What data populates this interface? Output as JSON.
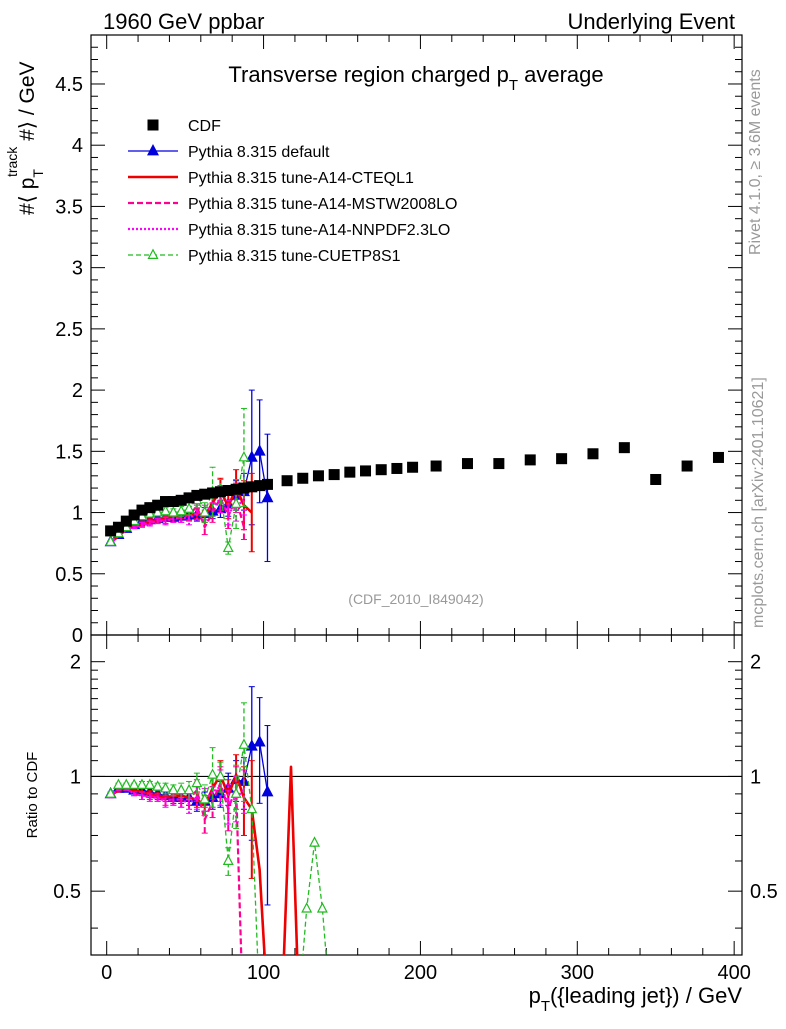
{
  "header": {
    "left": "1960 GeV ppbar",
    "right": "Underlying Event",
    "side_top": "Rivet 4.1.0, ≥ 3.6M events",
    "side_bottom": "mcplots.cern.ch [arXiv:2401.10621]"
  },
  "chart_data": [
    {
      "type": "line",
      "panel": "main",
      "title": "Transverse region charged p_T average",
      "title_main": "Transverse region charged p",
      "title_sub": "T",
      "title_tail": " average",
      "ylabel": "#⟨ p_T^track #⟩ / GeV",
      "ylabel_pre": "#⟨ p",
      "ylabel_sub": "T",
      "ylabel_sup": "track",
      "ylabel_post": " #⟩ / GeV",
      "watermark": "(CDF_2010_I849042)",
      "xlim": [
        -10,
        405
      ],
      "ylim": [
        0,
        4.9
      ],
      "yticks": [
        0,
        0.5,
        1,
        1.5,
        2,
        2.5,
        3,
        3.5,
        4,
        4.5
      ],
      "ytick_labels": [
        "0",
        "0.5",
        "1",
        "1.5",
        "2",
        "2.5",
        "3",
        "3.5",
        "4",
        "4.5"
      ],
      "legend_position": "top-left",
      "series": [
        {
          "name": "CDF",
          "style": "data",
          "color": "#000000",
          "x": [
            2.5,
            7.5,
            12.5,
            17.5,
            22.5,
            27.5,
            32.5,
            37.5,
            42.5,
            47.5,
            52.5,
            57.5,
            62.5,
            67.5,
            72.5,
            77.5,
            82.5,
            87.5,
            92.5,
            97.5,
            102.5,
            115,
            125,
            135,
            145,
            155,
            165,
            175,
            185,
            195,
            210,
            230,
            250,
            270,
            290,
            310,
            330,
            350,
            370,
            390
          ],
          "y": [
            0.85,
            0.88,
            0.93,
            0.98,
            1.02,
            1.04,
            1.06,
            1.09,
            1.09,
            1.1,
            1.12,
            1.14,
            1.15,
            1.16,
            1.17,
            1.18,
            1.19,
            1.2,
            1.21,
            1.22,
            1.23,
            1.26,
            1.28,
            1.3,
            1.31,
            1.33,
            1.34,
            1.35,
            1.36,
            1.37,
            1.38,
            1.4,
            1.4,
            1.43,
            1.44,
            1.48,
            1.53,
            1.27,
            1.38,
            1.45
          ]
        },
        {
          "name": "Pythia 8.315 default",
          "style": "blue-triangle",
          "color": "#0000dd",
          "x": [
            2.5,
            7.5,
            12.5,
            17.5,
            22.5,
            27.5,
            32.5,
            37.5,
            42.5,
            47.5,
            52.5,
            57.5,
            62.5,
            67.5,
            72.5,
            77.5,
            82.5,
            87.5,
            92.5,
            97.5,
            102.5
          ],
          "y": [
            0.76,
            0.82,
            0.87,
            0.9,
            0.93,
            0.94,
            0.95,
            0.96,
            0.96,
            0.97,
            0.98,
            0.98,
            0.99,
            1.01,
            1.03,
            1.07,
            1.14,
            1.17,
            1.45,
            1.5,
            1.12
          ],
          "err": [
            0.01,
            0.01,
            0.01,
            0.01,
            0.02,
            0.02,
            0.02,
            0.02,
            0.03,
            0.03,
            0.04,
            0.05,
            0.05,
            0.06,
            0.07,
            0.1,
            0.12,
            0.15,
            0.55,
            0.42,
            0.52
          ]
        },
        {
          "name": "Pythia 8.315 tune-A14-CTEQL1",
          "style": "red-solid",
          "color": "#ee0000",
          "x": [
            2.5,
            7.5,
            12.5,
            17.5,
            22.5,
            27.5,
            32.5,
            37.5,
            42.5,
            47.5,
            52.5,
            57.5,
            62.5,
            67.5,
            72.5,
            77.5,
            82.5,
            87.5,
            92.5
          ],
          "y": [
            0.75,
            0.81,
            0.86,
            0.89,
            0.91,
            0.93,
            0.94,
            0.96,
            0.97,
            0.98,
            0.98,
            0.99,
            0.97,
            1.08,
            1.18,
            1.05,
            1.2,
            1.06,
            1.0
          ],
          "err": [
            0.01,
            0.01,
            0.01,
            0.01,
            0.02,
            0.02,
            0.02,
            0.02,
            0.03,
            0.03,
            0.04,
            0.04,
            0.05,
            0.06,
            0.1,
            0.1,
            0.15,
            0.2,
            0.32
          ]
        },
        {
          "name": "Pythia 8.315 tune-A14-MSTW2008LO",
          "style": "magenta-dashed",
          "color": "#ff0090",
          "x": [
            2.5,
            7.5,
            12.5,
            17.5,
            22.5,
            27.5,
            32.5,
            37.5,
            42.5,
            47.5,
            52.5,
            57.5,
            62.5,
            67.5,
            72.5,
            77.5,
            82.5,
            87.5
          ],
          "y": [
            0.75,
            0.81,
            0.86,
            0.88,
            0.9,
            0.92,
            0.93,
            0.94,
            0.95,
            0.96,
            0.98,
            1.05,
            0.88,
            1.0,
            1.12,
            0.97,
            1.12,
            0.88
          ],
          "err": [
            0.01,
            0.01,
            0.01,
            0.01,
            0.02,
            0.02,
            0.02,
            0.03,
            0.03,
            0.04,
            0.05,
            0.06,
            0.06,
            0.08,
            0.1,
            0.1,
            0.12,
            0.1
          ]
        },
        {
          "name": "Pythia 8.315 tune-A14-NNPDF2.3LO",
          "style": "magenta-dotted",
          "color": "#ff00ff",
          "x": [
            2.5,
            7.5,
            12.5,
            17.5,
            22.5,
            27.5,
            32.5,
            37.5,
            42.5,
            47.5,
            52.5,
            57.5,
            62.5,
            67.5,
            72.5,
            77.5,
            82.5,
            87.5
          ],
          "y": [
            0.75,
            0.81,
            0.86,
            0.88,
            0.9,
            0.91,
            0.93,
            0.93,
            0.95,
            0.96,
            0.95,
            1.0,
            1.0,
            1.05,
            1.1,
            1.0,
            1.05,
            1.1
          ],
          "err": [
            0.01,
            0.01,
            0.01,
            0.01,
            0.02,
            0.02,
            0.02,
            0.03,
            0.03,
            0.04,
            0.05,
            0.06,
            0.06,
            0.08,
            0.1,
            0.1,
            0.12,
            0.12
          ]
        },
        {
          "name": "Pythia 8.315 tune-CUETP8S1",
          "style": "green-dashed-triangle",
          "color": "#22bb22",
          "x": [
            2.5,
            7.5,
            12.5,
            17.5,
            22.5,
            27.5,
            32.5,
            37.5,
            42.5,
            47.5,
            52.5,
            57.5,
            62.5,
            67.5,
            72.5,
            77.5,
            82.5,
            87.5
          ],
          "y": [
            0.76,
            0.83,
            0.88,
            0.93,
            0.97,
            0.99,
            1.0,
            1.01,
            1.0,
            1.01,
            1.03,
            1.1,
            1.0,
            1.17,
            1.17,
            0.71,
            1.07,
            1.45
          ],
          "err": [
            0.01,
            0.01,
            0.01,
            0.01,
            0.02,
            0.02,
            0.02,
            0.03,
            0.03,
            0.04,
            0.05,
            0.06,
            0.08,
            0.2,
            0.1,
            0.05,
            0.2,
            0.4
          ]
        }
      ]
    },
    {
      "type": "line",
      "panel": "ratio",
      "ylabel": "Ratio to CDF",
      "xlabel": "p_T({leading jet}) / GeV",
      "xlabel_pre": "p",
      "xlabel_sub": "T",
      "xlabel_post": "({leading jet}) / GeV",
      "xlim": [
        -10,
        405
      ],
      "ylim": [
        0.34,
        2.35
      ],
      "yticks": [
        0.5,
        1,
        2
      ],
      "ytick_labels": [
        "0.5",
        "1",
        "2"
      ],
      "xticks": [
        0,
        100,
        200,
        300,
        400
      ],
      "xtick_labels": [
        "0",
        "100",
        "200",
        "300",
        "400"
      ],
      "reference_line": 1,
      "series": [
        {
          "name": "Pythia 8.315 default",
          "style": "blue-triangle",
          "color": "#0000dd",
          "x": [
            2.5,
            7.5,
            12.5,
            17.5,
            22.5,
            27.5,
            32.5,
            37.5,
            42.5,
            47.5,
            52.5,
            57.5,
            62.5,
            67.5,
            72.5,
            77.5,
            82.5,
            87.5,
            92.5,
            97.5,
            102.5
          ],
          "y": [
            0.9,
            0.93,
            0.93,
            0.92,
            0.92,
            0.91,
            0.9,
            0.89,
            0.88,
            0.88,
            0.88,
            0.86,
            0.86,
            0.88,
            0.9,
            0.93,
            0.98,
            0.97,
            1.2,
            1.23,
            0.91
          ],
          "err": [
            0.01,
            0.01,
            0.01,
            0.01,
            0.02,
            0.02,
            0.02,
            0.02,
            0.03,
            0.03,
            0.04,
            0.05,
            0.05,
            0.06,
            0.07,
            0.09,
            0.12,
            0.15,
            0.52,
            0.38,
            0.45
          ]
        },
        {
          "name": "Pythia 8.315 tune-A14-CTEQL1",
          "style": "red-solid",
          "color": "#ee0000",
          "x": [
            2.5,
            7.5,
            12.5,
            17.5,
            22.5,
            27.5,
            32.5,
            37.5,
            42.5,
            47.5,
            52.5,
            57.5,
            62.5,
            67.5,
            72.5,
            77.5,
            82.5,
            87.5,
            92.5,
            97.5,
            102.5,
            112.5,
            117.5,
            122.5
          ],
          "y": [
            0.89,
            0.92,
            0.93,
            0.92,
            0.91,
            0.9,
            0.89,
            0.88,
            0.89,
            0.89,
            0.88,
            0.87,
            0.84,
            0.93,
            1.01,
            0.89,
            1.01,
            0.88,
            0.82,
            0.57,
            0.25,
            0.3,
            1.06,
            0.25
          ],
          "err": [
            0.01,
            0.01,
            0.01,
            0.01,
            0.02,
            0.02,
            0.02,
            0.02,
            0.03,
            0.03,
            0.04,
            0.04,
            0.05,
            0.06,
            0.09,
            0.09,
            0.13,
            0.18,
            0.28,
            0,
            0,
            0,
            0,
            0
          ]
        },
        {
          "name": "Pythia 8.315 tune-A14-MSTW2008LO",
          "style": "magenta-dashed",
          "color": "#ff0090",
          "x": [
            2.5,
            7.5,
            12.5,
            17.5,
            22.5,
            27.5,
            32.5,
            37.5,
            42.5,
            47.5,
            52.5,
            57.5,
            62.5,
            67.5,
            72.5,
            77.5,
            82.5,
            87.5
          ],
          "y": [
            0.89,
            0.93,
            0.93,
            0.9,
            0.89,
            0.89,
            0.88,
            0.87,
            0.87,
            0.87,
            0.87,
            0.92,
            0.77,
            0.86,
            0.96,
            0.82,
            0.94,
            0.2
          ],
          "err": [
            0.01,
            0.01,
            0.01,
            0.01,
            0.02,
            0.02,
            0.02,
            0.03,
            0.03,
            0.04,
            0.05,
            0.06,
            0.06,
            0.08,
            0.1,
            0.1,
            0.12,
            0
          ]
        },
        {
          "name": "Pythia 8.315 tune-A14-NNPDF2.3LO",
          "style": "magenta-dotted",
          "color": "#ff00ff",
          "x": [
            2.5,
            7.5,
            12.5,
            17.5,
            22.5,
            27.5,
            32.5,
            37.5,
            42.5,
            47.5,
            52.5,
            57.5,
            62.5,
            67.5,
            72.5,
            77.5,
            82.5,
            87.5
          ],
          "y": [
            0.89,
            0.93,
            0.93,
            0.9,
            0.89,
            0.88,
            0.88,
            0.86,
            0.87,
            0.87,
            0.85,
            0.88,
            0.87,
            0.91,
            0.94,
            0.85,
            0.88,
            0.92
          ],
          "err": [
            0.01,
            0.01,
            0.01,
            0.01,
            0.02,
            0.02,
            0.02,
            0.03,
            0.03,
            0.04,
            0.05,
            0.06,
            0.06,
            0.08,
            0.1,
            0.1,
            0.12,
            0.12
          ]
        },
        {
          "name": "Pythia 8.315 tune-CUETP8S1",
          "style": "green-dashed-triangle",
          "color": "#22bb22",
          "x": [
            2.5,
            7.5,
            12.5,
            17.5,
            22.5,
            27.5,
            32.5,
            37.5,
            42.5,
            47.5,
            52.5,
            57.5,
            62.5,
            67.5,
            72.5,
            77.5,
            82.5,
            87.5,
            92.5,
            97.5,
            102.5,
            112.5,
            117.5,
            122.5,
            127.5,
            132.5,
            137.5,
            142.5
          ],
          "y": [
            0.9,
            0.95,
            0.95,
            0.95,
            0.95,
            0.95,
            0.94,
            0.93,
            0.92,
            0.92,
            0.92,
            0.96,
            0.87,
            1.01,
            1.0,
            0.6,
            0.9,
            1.21,
            0.82,
            0.25,
            0.25,
            0.25,
            0.25,
            0.25,
            0.45,
            0.67,
            0.45,
            0.25
          ],
          "err": [
            0.01,
            0.01,
            0.01,
            0.01,
            0.02,
            0.02,
            0.02,
            0.03,
            0.03,
            0.04,
            0.05,
            0.06,
            0.08,
            0.18,
            0.09,
            0.05,
            0.17,
            0.35,
            0,
            0,
            0,
            0,
            0,
            0,
            0,
            0,
            0,
            0
          ]
        }
      ]
    }
  ]
}
